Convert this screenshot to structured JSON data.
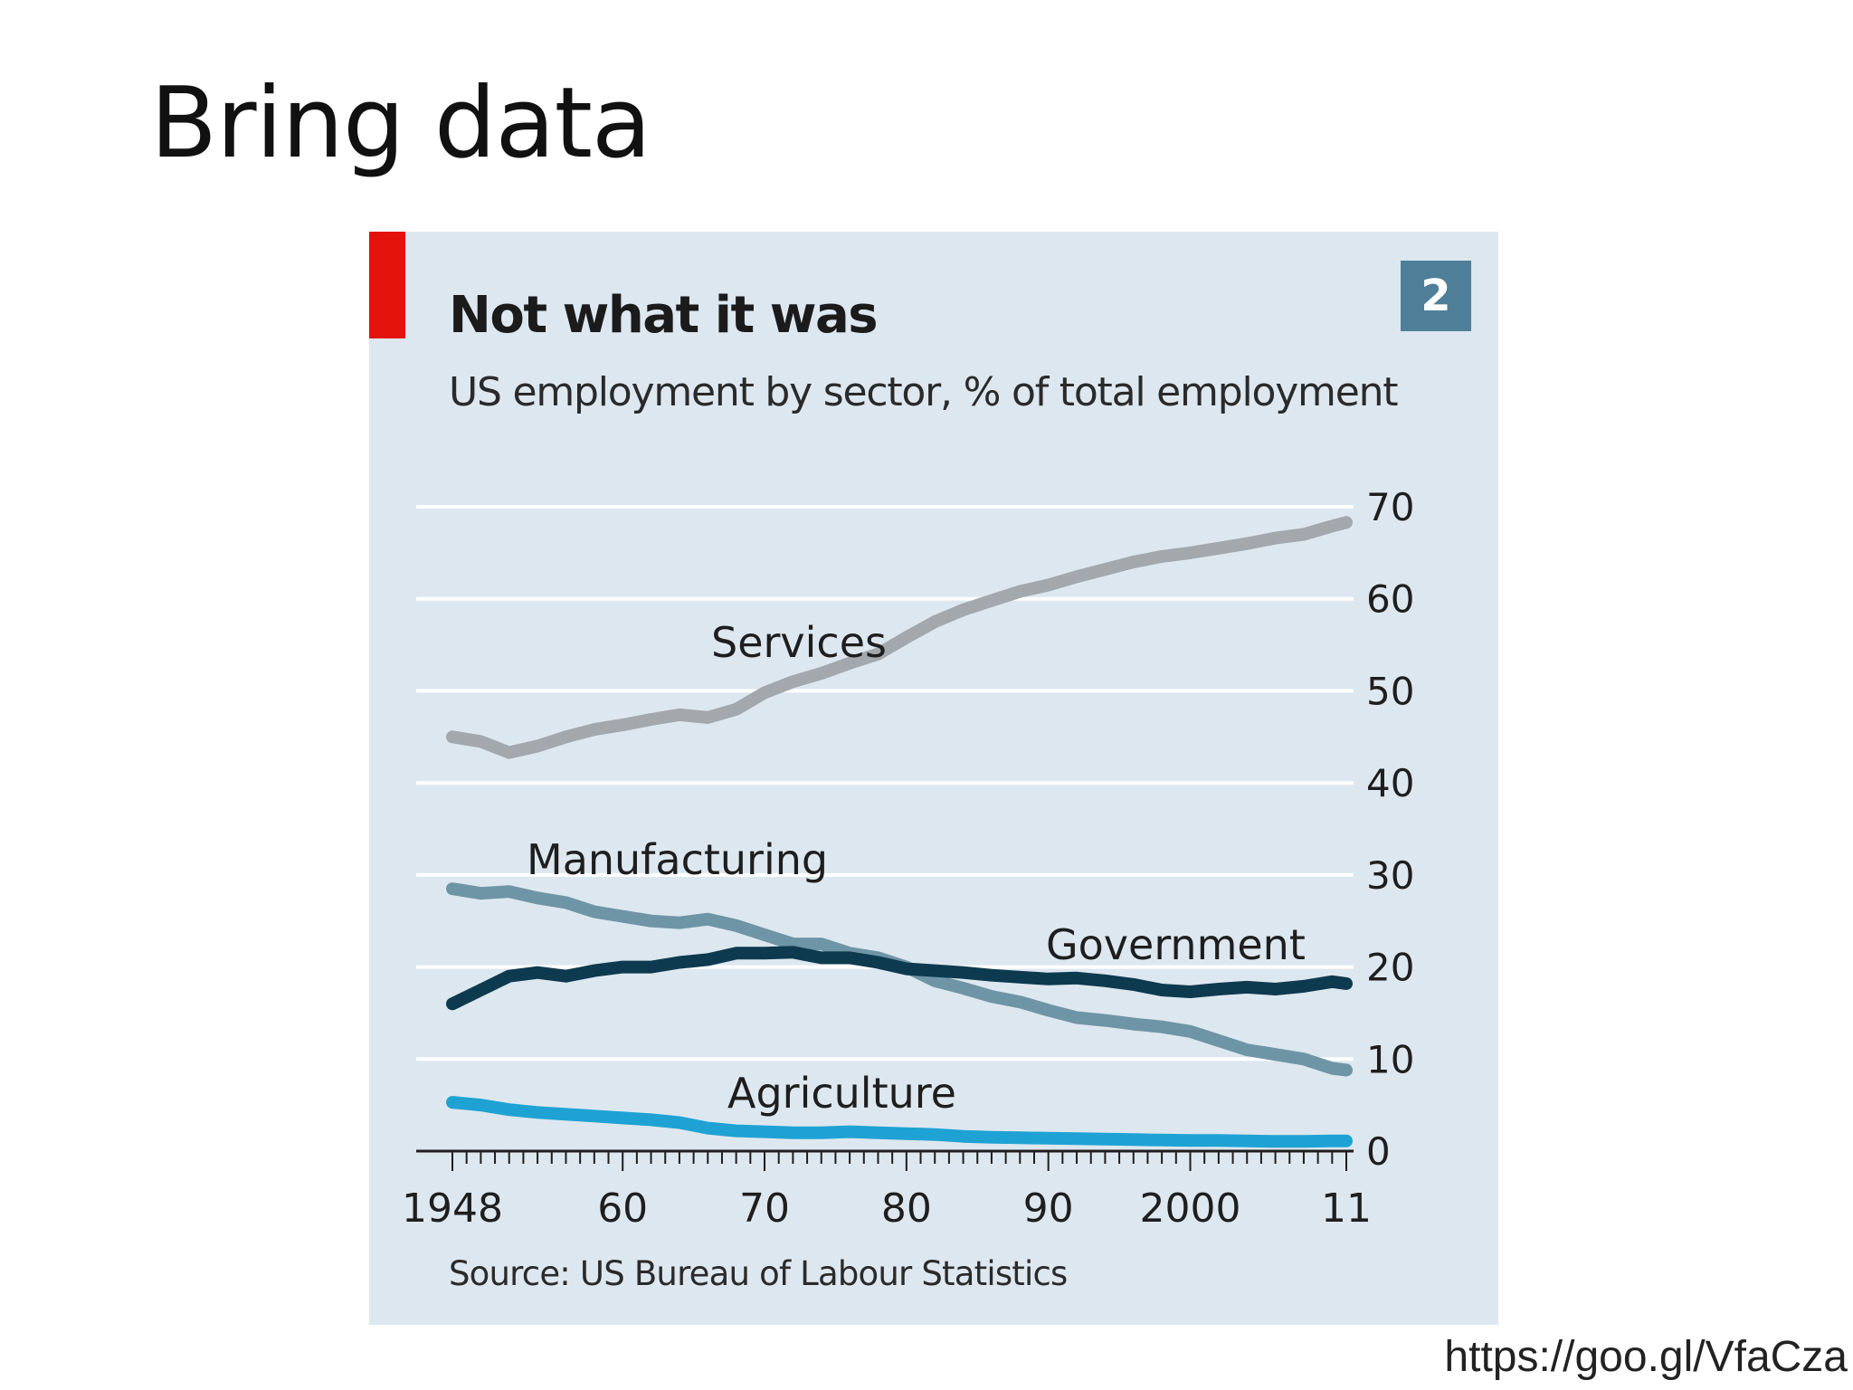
{
  "slide": {
    "title": "Bring data",
    "source_url": "https://goo.gl/VfaCza"
  },
  "colors": {
    "card_background": "#dde7ef",
    "accent_red": "#e3120b",
    "badge": "#4f7f98"
  },
  "chart_data": {
    "type": "line",
    "title": "Not what it was",
    "subtitle": "US employment by sector, % of total employment",
    "chart_number": "2",
    "source": "Source: US Bureau of Labour Statistics",
    "xlabel": "",
    "ylabel": "",
    "xlim": [
      1948,
      2011
    ],
    "ylim": [
      0,
      70
    ],
    "yticks": [
      0,
      10,
      20,
      30,
      40,
      50,
      60,
      70
    ],
    "ytick_labels": [
      "0",
      "10",
      "20",
      "30",
      "40",
      "50",
      "60",
      "70"
    ],
    "xticks": [
      1948,
      1960,
      1970,
      1980,
      1990,
      2000,
      2011
    ],
    "xtick_labels": [
      "1948",
      "60",
      "70",
      "80",
      "90",
      "2000",
      "11"
    ],
    "grid": true,
    "y_axis_side": "right",
    "x": [
      1948,
      1950,
      1952,
      1954,
      1956,
      1958,
      1960,
      1962,
      1964,
      1966,
      1968,
      1970,
      1972,
      1974,
      1976,
      1978,
      1980,
      1982,
      1984,
      1986,
      1988,
      1990,
      1992,
      1994,
      1996,
      1998,
      2000,
      2002,
      2004,
      2006,
      2008,
      2010,
      2011
    ],
    "series": [
      {
        "name": "Services",
        "label": "Services",
        "color": "#a3a8ad",
        "values": [
          45,
          44.5,
          43.3,
          44,
          45,
          45.8,
          46.3,
          46.9,
          47.4,
          47.1,
          48,
          49.8,
          51,
          51.9,
          53,
          54,
          55.8,
          57.5,
          58.8,
          59.8,
          60.8,
          61.5,
          62.4,
          63.2,
          64,
          64.6,
          65,
          65.5,
          66,
          66.6,
          67,
          67.9,
          68.3
        ]
      },
      {
        "name": "Manufacturing",
        "label": "Manufacturing",
        "color": "#6e95a6",
        "values": [
          28.5,
          28,
          28.2,
          27.5,
          27,
          26,
          25.5,
          25,
          24.8,
          25.2,
          24.5,
          23.5,
          22.5,
          22.5,
          21.5,
          21,
          20,
          18.5,
          17.7,
          16.8,
          16.2,
          15.3,
          14.5,
          14.2,
          13.8,
          13.5,
          13,
          12,
          11,
          10.5,
          10,
          9,
          8.8
        ]
      },
      {
        "name": "Government",
        "label": "Government",
        "color": "#0d3a4f",
        "values": [
          16,
          17.5,
          19,
          19.4,
          19,
          19.6,
          20,
          20,
          20.5,
          20.8,
          21.5,
          21.5,
          21.6,
          21,
          21,
          20.5,
          19.8,
          19.6,
          19.4,
          19.1,
          18.9,
          18.7,
          18.8,
          18.5,
          18.1,
          17.5,
          17.3,
          17.6,
          17.8,
          17.6,
          17.9,
          18.4,
          18.2
        ]
      },
      {
        "name": "Agriculture",
        "label": "Agriculture",
        "color": "#1ea2d3",
        "values": [
          5.3,
          5,
          4.5,
          4.2,
          4,
          3.8,
          3.6,
          3.4,
          3.1,
          2.5,
          2.2,
          2.1,
          2,
          2,
          2.1,
          2,
          1.9,
          1.8,
          1.6,
          1.5,
          1.45,
          1.4,
          1.35,
          1.3,
          1.25,
          1.2,
          1.15,
          1.15,
          1.1,
          1.05,
          1.05,
          1.1,
          1.1
        ]
      }
    ]
  }
}
